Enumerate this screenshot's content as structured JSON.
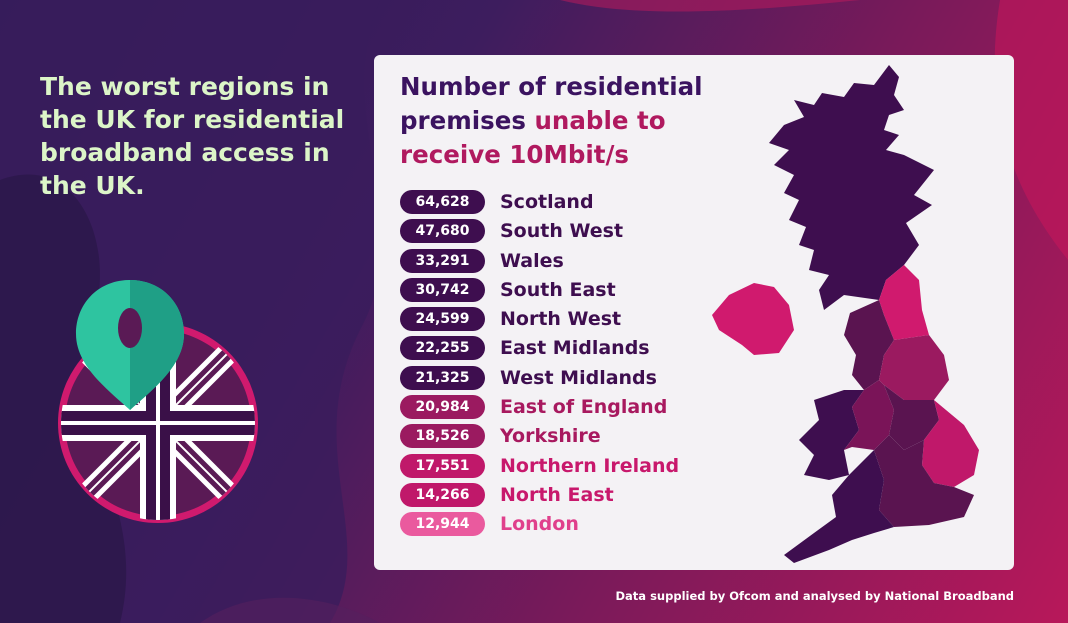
{
  "headline": "The worst regions in the UK for residential broadband access in the UK.",
  "card": {
    "title_part1": "Number of residential premises ",
    "title_part2": "unable to receive 10Mbit/s"
  },
  "footer": "Data supplied by Ofcom and analysed by National Broadband",
  "colors": {
    "dark_purple": "#3e0e4f",
    "purple": "#5a1450",
    "magenta": "#9b1a60",
    "pink": "#d01a6e",
    "light_pink": "#ea5a9e",
    "accent_text": "#b0195f",
    "headline_green": "#dcf5c8",
    "pin_teal": "#2ec4a0"
  },
  "icons": [
    "location-pin-icon",
    "union-jack-icon"
  ],
  "chart_data": {
    "type": "bar",
    "title": "Number of residential premises unable to receive 10Mbit/s",
    "categories": [
      "Scotland",
      "South West",
      "Wales",
      "South East",
      "North West",
      "East Midlands",
      "West Midlands",
      "East of England",
      "Yorkshire",
      "Northern Ireland",
      "North East",
      "London"
    ],
    "values": [
      64628,
      47680,
      33291,
      30742,
      24599,
      22255,
      21325,
      20984,
      18526,
      17551,
      14266,
      12944
    ],
    "labels": [
      "64,628",
      "47,680",
      "33,291",
      "30,742",
      "24,599",
      "22,255",
      "21,325",
      "20,984",
      "18,526",
      "17,551",
      "14,266",
      "12,944"
    ],
    "colors": [
      "#3e0e4f",
      "#3e0e4f",
      "#3e0e4f",
      "#3e0e4f",
      "#3e0e4f",
      "#3e0e4f",
      "#3e0e4f",
      "#9b1a60",
      "#9b1a60",
      "#c0186a",
      "#c0186a",
      "#ea5a9e"
    ],
    "name_colors": [
      "#3e0e4f",
      "#3e0e4f",
      "#3e0e4f",
      "#3e0e4f",
      "#3e0e4f",
      "#3e0e4f",
      "#3e0e4f",
      "#a8195f",
      "#a8195f",
      "#c8186c",
      "#c8186c",
      "#e0408c"
    ]
  }
}
